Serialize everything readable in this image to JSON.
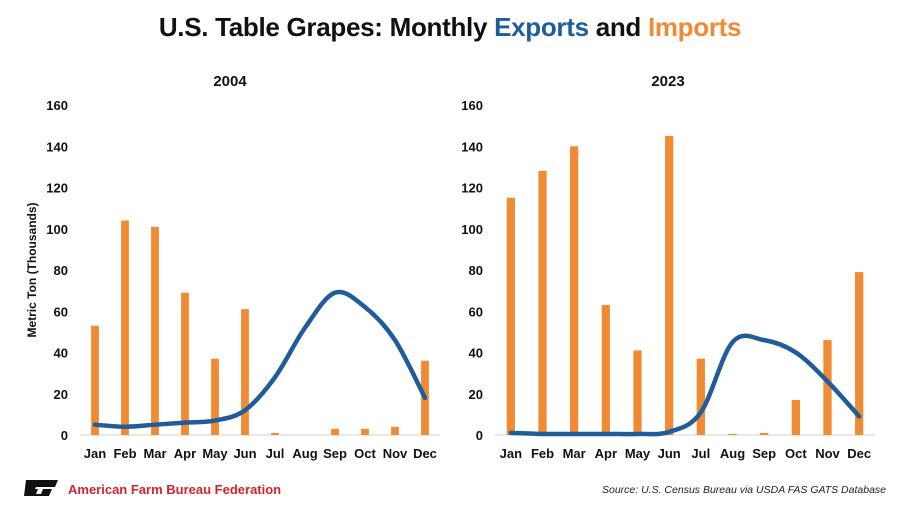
{
  "header": {
    "title_prefix": "U.S. Table Grapes: Monthly ",
    "title_exports": "Exports",
    "title_and": " and ",
    "title_imports": "Imports"
  },
  "colors": {
    "exports": "#1f5c99",
    "imports": "#f08a33"
  },
  "footer": {
    "organization": "American Farm Bureau Federation",
    "source": "Source: U.S. Census Bureau via USDA FAS GATS Database"
  },
  "chart_data": [
    {
      "type": "bar+line",
      "title": "2004",
      "ylabel": "Metric Ton (Thousands)",
      "ylim": [
        0,
        160
      ],
      "yticks": [
        0,
        20,
        40,
        60,
        80,
        100,
        120,
        140,
        160
      ],
      "categories": [
        "Jan",
        "Feb",
        "Mar",
        "Apr",
        "May",
        "Jun",
        "Jul",
        "Aug",
        "Sep",
        "Oct",
        "Nov",
        "Dec"
      ],
      "series": [
        {
          "kind": "bar",
          "values": [
            53,
            104,
            101,
            69,
            37,
            61,
            1,
            0,
            3,
            3,
            4,
            36
          ]
        },
        {
          "kind": "line",
          "values": [
            5,
            4,
            5,
            6,
            7,
            12,
            28,
            52,
            69,
            62,
            46,
            18
          ]
        }
      ]
    },
    {
      "type": "bar+line",
      "title": "2023",
      "ylabel": "",
      "ylim": [
        0,
        160
      ],
      "yticks": [
        0,
        20,
        40,
        60,
        80,
        100,
        120,
        140,
        160
      ],
      "categories": [
        "Jan",
        "Feb",
        "Mar",
        "Apr",
        "May",
        "Jun",
        "Jul",
        "Aug",
        "Sep",
        "Oct",
        "Nov",
        "Dec"
      ],
      "series": [
        {
          "kind": "bar",
          "values": [
            115,
            128,
            140,
            63,
            41,
            145,
            37,
            0.5,
            1,
            17,
            46,
            79
          ]
        },
        {
          "kind": "line",
          "values": [
            1,
            0.5,
            0.5,
            0.5,
            0.5,
            1.5,
            11,
            45,
            46,
            40,
            26,
            9
          ]
        }
      ]
    }
  ]
}
